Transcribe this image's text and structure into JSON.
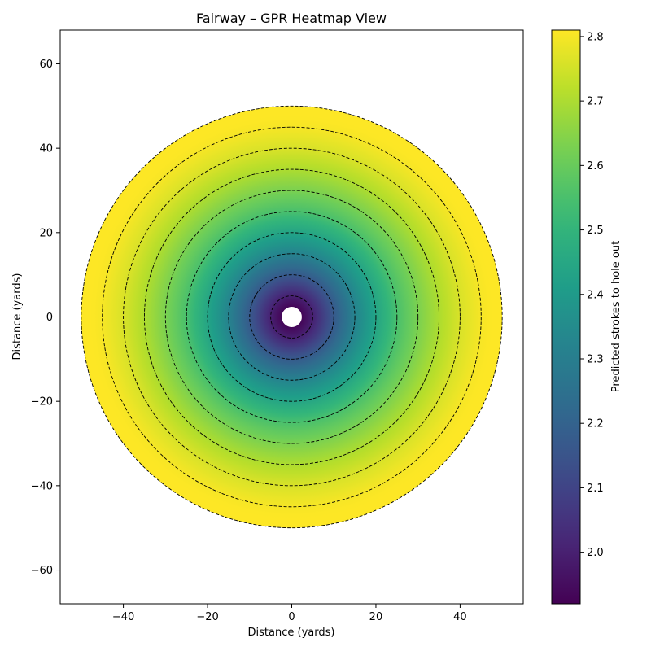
{
  "chart_data": {
    "type": "heatmap",
    "title": "Fairway – GPR Heatmap View",
    "xlabel": "Distance (yards)",
    "ylabel": "Distance (yards)",
    "xlim": [
      -55,
      55
    ],
    "ylim": [
      -68,
      68
    ],
    "x_ticks": [
      -40,
      -20,
      0,
      20,
      40
    ],
    "y_ticks": [
      -60,
      -40,
      -20,
      0,
      20,
      40,
      60
    ],
    "x_tick_labels": [
      "−40",
      "−20",
      "0",
      "20",
      "40"
    ],
    "y_tick_labels": [
      "−60",
      "−40",
      "−20",
      "0",
      "20",
      "40",
      "60"
    ],
    "center": [
      0,
      0
    ],
    "inner_radius": 2,
    "outer_radius": 50,
    "contour_radii": [
      5,
      10,
      15,
      20,
      25,
      30,
      35,
      40,
      45,
      50
    ],
    "radial_profile": {
      "distance": [
        2,
        5,
        10,
        15,
        20,
        25,
        30,
        35,
        40,
        45,
        50
      ],
      "strokes": [
        1.92,
        2.0,
        2.17,
        2.32,
        2.44,
        2.55,
        2.63,
        2.7,
        2.76,
        2.8,
        2.82
      ]
    },
    "colorbar": {
      "label": "Predicted strokes to hole out",
      "colormap": "viridis",
      "range": [
        1.92,
        2.81
      ],
      "ticks": [
        2.0,
        2.1,
        2.2,
        2.3,
        2.4,
        2.5,
        2.6,
        2.7,
        2.8
      ],
      "tick_labels": [
        "2.0",
        "2.1",
        "2.2",
        "2.3",
        "2.4",
        "2.5",
        "2.6",
        "2.7",
        "2.8"
      ]
    },
    "grid": false
  }
}
